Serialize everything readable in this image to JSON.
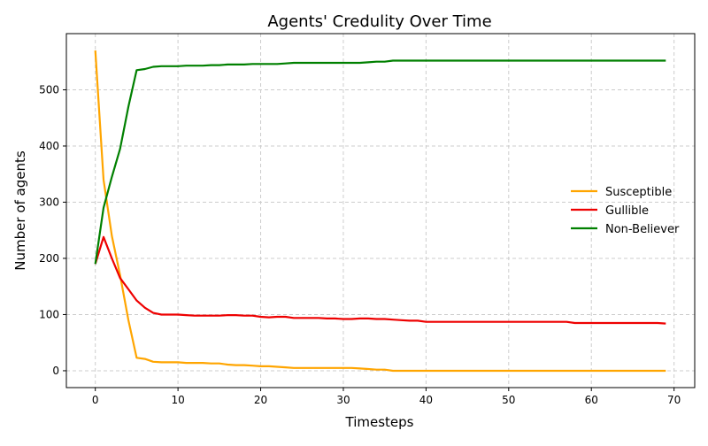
{
  "chart_data": {
    "type": "line",
    "title": "Agents' Credulity Over Time",
    "xlabel": "Timesteps",
    "ylabel": "Number of agents",
    "xlim": [
      -3.5,
      72.5
    ],
    "ylim": [
      -30,
      600
    ],
    "xticks": [
      0,
      10,
      20,
      30,
      40,
      50,
      60,
      70
    ],
    "yticks": [
      0,
      100,
      200,
      300,
      400,
      500
    ],
    "grid": true,
    "legend_position": "center-right",
    "x": [
      0,
      1,
      2,
      3,
      4,
      5,
      6,
      7,
      8,
      9,
      10,
      11,
      12,
      13,
      14,
      15,
      16,
      17,
      18,
      19,
      20,
      21,
      22,
      23,
      24,
      25,
      26,
      27,
      28,
      29,
      30,
      31,
      32,
      33,
      34,
      35,
      36,
      37,
      38,
      39,
      40,
      41,
      42,
      43,
      44,
      45,
      46,
      47,
      48,
      49,
      50,
      51,
      52,
      53,
      54,
      55,
      56,
      57,
      58,
      59,
      60,
      61,
      62,
      63,
      64,
      65,
      66,
      67,
      68,
      69
    ],
    "series": [
      {
        "name": "Susceptible",
        "color": "#ffa500",
        "values": [
          570,
          340,
          240,
          170,
          90,
          23,
          21,
          16,
          15,
          15,
          15,
          14,
          14,
          14,
          13,
          13,
          11,
          10,
          10,
          9,
          8,
          8,
          7,
          6,
          5,
          5,
          5,
          5,
          5,
          5,
          5,
          5,
          4,
          3,
          2,
          2,
          0,
          0,
          0,
          0,
          0,
          0,
          0,
          0,
          0,
          0,
          0,
          0,
          0,
          0,
          0,
          0,
          0,
          0,
          0,
          0,
          0,
          0,
          0,
          0,
          0,
          0,
          0,
          0,
          0,
          0,
          0,
          0,
          0,
          0
        ]
      },
      {
        "name": "Gullible",
        "color": "#ee0000",
        "values": [
          190,
          238,
          200,
          165,
          145,
          125,
          112,
          103,
          100,
          100,
          100,
          99,
          98,
          98,
          98,
          98,
          99,
          99,
          98,
          98,
          96,
          95,
          96,
          96,
          94,
          94,
          94,
          94,
          93,
          93,
          92,
          92,
          93,
          93,
          92,
          92,
          91,
          90,
          89,
          89,
          87,
          87,
          87,
          87,
          87,
          87,
          87,
          87,
          87,
          87,
          87,
          87,
          87,
          87,
          87,
          87,
          87,
          87,
          85,
          85,
          85,
          85,
          85,
          85,
          85,
          85,
          85,
          85,
          85,
          84
        ]
      },
      {
        "name": "Non-Believer",
        "color": "#008000",
        "values": [
          190,
          290,
          345,
          395,
          470,
          535,
          537,
          541,
          542,
          542,
          542,
          543,
          543,
          543,
          544,
          544,
          545,
          545,
          545,
          546,
          546,
          546,
          546,
          547,
          548,
          548,
          548,
          548,
          548,
          548,
          548,
          548,
          548,
          549,
          550,
          550,
          552,
          552,
          552,
          552,
          552,
          552,
          552,
          552,
          552,
          552,
          552,
          552,
          552,
          552,
          552,
          552,
          552,
          552,
          552,
          552,
          552,
          552,
          552,
          552,
          552,
          552,
          552,
          552,
          552,
          552,
          552,
          552,
          552,
          552
        ]
      }
    ]
  }
}
